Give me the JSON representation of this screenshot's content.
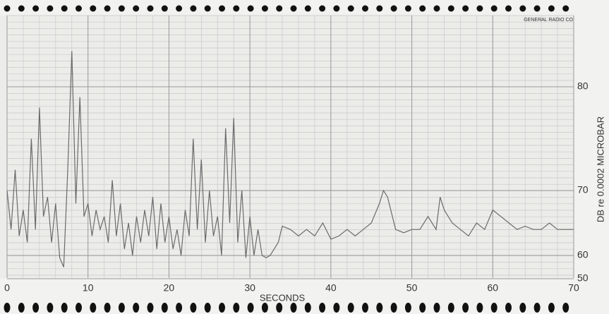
{
  "chart_data": {
    "type": "line",
    "x_label": "SECONDS",
    "y_label": "DB re 0.0002 MICROBAR",
    "annotations": [
      "GENERAL RADIO CO"
    ],
    "x": [
      0,
      0.5,
      1,
      1.5,
      2,
      2.5,
      3,
      3.5,
      4,
      4.5,
      5,
      5.5,
      6,
      6.5,
      7,
      7.5,
      8,
      8.5,
      9,
      9.5,
      10,
      10.5,
      11,
      11.5,
      12,
      12.5,
      13,
      13.5,
      14,
      14.5,
      15,
      15.5,
      16,
      16.5,
      17,
      17.5,
      18,
      18.5,
      19,
      19.5,
      20,
      20.5,
      21,
      21.5,
      22,
      22.5,
      23,
      23.5,
      24,
      24.5,
      25,
      25.5,
      26,
      26.5,
      27,
      27.5,
      28,
      28.5,
      29,
      29.5,
      30,
      30.5,
      31,
      31.5,
      32,
      32.5,
      33,
      33.5,
      34,
      35,
      36,
      37,
      38,
      39,
      40,
      41,
      42,
      43,
      44,
      45,
      46,
      46.5,
      47,
      48,
      49,
      50,
      51,
      52,
      53,
      53.5,
      54,
      55,
      56,
      57,
      58,
      59,
      60,
      61,
      62,
      63,
      64,
      65,
      66,
      67,
      68,
      69,
      70
    ],
    "values": [
      70,
      64,
      72,
      63,
      67,
      62,
      75,
      64,
      78,
      66,
      69,
      62,
      68,
      59,
      55,
      72,
      83,
      68,
      79,
      66,
      68,
      63,
      67,
      64,
      66,
      62,
      71,
      63,
      68,
      61,
      65,
      60,
      66,
      62,
      67,
      63,
      69,
      61,
      68,
      62,
      66,
      61,
      64,
      60,
      67,
      63,
      75,
      64,
      73,
      62,
      70,
      63,
      66,
      60,
      76,
      65,
      77,
      62,
      70,
      59,
      66,
      60,
      64,
      60,
      59,
      60,
      61,
      62,
      64.5,
      64,
      63,
      64,
      63,
      65,
      62.5,
      63,
      64,
      63,
      64,
      65,
      68,
      70,
      69,
      64,
      63.5,
      64,
      64,
      66,
      64,
      69,
      67,
      65,
      64,
      63,
      65,
      64,
      67,
      66,
      65,
      64,
      64.5,
      64,
      64,
      65,
      64,
      64,
      64
    ],
    "color": "#6b6b6b",
    "xlim": [
      0,
      70
    ],
    "xticks": [
      0,
      10,
      20,
      30,
      40,
      50,
      60,
      70
    ],
    "ylim": [
      50,
      86
    ],
    "yticks": [
      50,
      60,
      70,
      80
    ],
    "grid": true
  }
}
